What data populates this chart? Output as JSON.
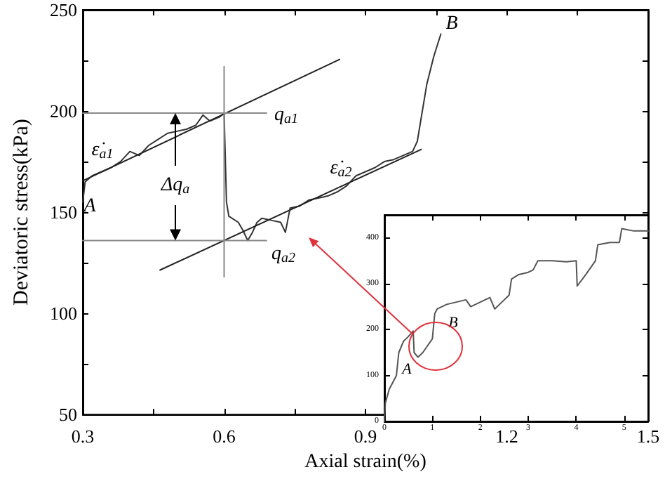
{
  "chart_data": [
    {
      "type": "line",
      "xlabel": "Axial strain(%)",
      "ylabel": "Deviatoric stress(kPa)",
      "xlim": [
        0.3,
        1.5
      ],
      "ylim": [
        50,
        250
      ],
      "marker": "none",
      "xticks": [
        0.3,
        {
          "value": 0.45,
          "label": null
        },
        0.6,
        {
          "value": 0.75,
          "label": null
        },
        0.9,
        {
          "value": 1.05,
          "label": null
        },
        1.2,
        {
          "value": 1.35,
          "label": null
        },
        1.5
      ],
      "yticks": [
        50,
        {
          "value": 75,
          "label": null
        },
        100,
        {
          "value": 125,
          "label": null
        },
        150,
        {
          "value": 175,
          "label": null
        },
        200,
        {
          "value": 225,
          "label": null
        },
        250
      ],
      "series": [
        {
          "color": "#333333",
          "x": [
            0.3,
            0.305,
            0.32,
            0.34,
            0.36,
            0.38,
            0.4,
            0.42,
            0.44,
            0.46,
            0.48,
            0.5,
            0.52,
            0.54,
            0.555,
            0.57,
            0.59,
            0.6,
            0.605,
            0.61,
            0.63,
            0.64,
            0.65,
            0.66,
            0.67,
            0.68,
            0.7,
            0.72,
            0.73,
            0.74,
            0.76,
            0.78,
            0.8,
            0.82,
            0.84,
            0.86,
            0.88,
            0.9,
            0.92,
            0.94,
            0.96,
            0.98,
            1.0,
            1.01,
            1.03,
            1.045,
            1.06
          ],
          "values": [
            155,
            165,
            168,
            170,
            172,
            175,
            180,
            178,
            183,
            186,
            189,
            190,
            191,
            193,
            198,
            195,
            197,
            199,
            155,
            148,
            145,
            141,
            136,
            140,
            145,
            147,
            146,
            145,
            140,
            152,
            153,
            156,
            157,
            158,
            160,
            163,
            168,
            170,
            172,
            175,
            176,
            178,
            180,
            185,
            213,
            227,
            238
          ]
        },
        {
          "color": "#222222",
          "x": [
            0.3,
            0.845
          ],
          "values": [
            165.5,
            225.5
          ]
        },
        {
          "color": "#222222",
          "x": [
            0.464,
            1.018
          ],
          "values": [
            121.4,
            181
          ]
        },
        {
          "color": "#888888",
          "x": [
            0.3,
            0.69
          ],
          "values": [
            199,
            199
          ]
        },
        {
          "color": "#888888",
          "x": [
            0.3,
            0.69
          ],
          "values": [
            136,
            136
          ]
        },
        {
          "color": "#888888",
          "x": [
            0.6,
            0.6
          ],
          "values": [
            118,
            222
          ]
        }
      ],
      "annotations": [
        "A",
        "B",
        "ε̇$_{a1}$",
        "ε̇$_{a2}$",
        "q$_{a1}$",
        "q$_{a2}$",
        "Δq$_{a}$"
      ]
    },
    {
      "type": "line",
      "xlim": [
        0,
        5.5
      ],
      "ylim": [
        0,
        450
      ],
      "marker": "none",
      "xticks": [
        0,
        1,
        2,
        3,
        4,
        5
      ],
      "yticks": [
        0,
        100,
        200,
        300,
        400
      ],
      "series": [
        {
          "color": "#555555",
          "x": [
            0,
            0.02,
            0.1,
            0.2,
            0.25,
            0.3,
            0.4,
            0.5,
            0.6,
            0.62,
            0.7,
            0.8,
            0.9,
            1.0,
            1.05,
            1.1,
            1.3,
            1.5,
            1.7,
            1.8,
            2.0,
            2.2,
            2.3,
            2.4,
            2.6,
            2.65,
            2.8,
            3.0,
            3.1,
            3.2,
            3.5,
            3.8,
            4.0,
            4.02,
            4.2,
            4.4,
            4.45,
            4.7,
            4.9,
            4.95,
            5.2,
            5.5
          ],
          "values": [
            0,
            40,
            70,
            90,
            100,
            150,
            175,
            185,
            197,
            150,
            140,
            150,
            165,
            180,
            235,
            245,
            255,
            260,
            265,
            250,
            260,
            270,
            245,
            255,
            275,
            310,
            320,
            325,
            330,
            350,
            350,
            348,
            350,
            295,
            320,
            350,
            385,
            390,
            390,
            420,
            415,
            415
          ]
        }
      ],
      "annotations": [
        "A",
        "B"
      ]
    }
  ]
}
